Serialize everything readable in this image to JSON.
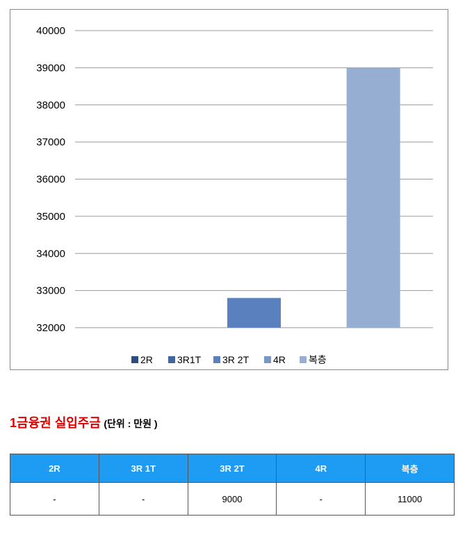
{
  "chart_data": {
    "type": "bar",
    "categories": [
      "",
      "",
      ""
    ],
    "series": [
      {
        "name": "2R",
        "color": "#2e4c7e",
        "values": [
          null,
          null,
          null
        ]
      },
      {
        "name": "3R1T",
        "color": "#3f66a0",
        "values": [
          null,
          null,
          null
        ]
      },
      {
        "name": "3R 2T",
        "color": "#5a80bd",
        "values": [
          null,
          32800,
          null
        ]
      },
      {
        "name": "4R",
        "color": "#7996c8",
        "values": [
          null,
          null,
          null
        ]
      },
      {
        "name": "복층",
        "color": "#97aed3",
        "values": [
          null,
          null,
          39000
        ]
      }
    ],
    "bars": [
      {
        "category_index": 1,
        "series": "3R 2T",
        "value": 32800,
        "color": "#5a80bd"
      },
      {
        "category_index": 2,
        "series": "복층",
        "value": 39000,
        "color": "#97aed3"
      }
    ],
    "yticks": [
      "32000",
      "33000",
      "34000",
      "35000",
      "36000",
      "37000",
      "38000",
      "39000",
      "40000"
    ],
    "ylim": [
      32000,
      40000
    ],
    "grid": true,
    "legend_position": "bottom",
    "title": "",
    "xlabel": "",
    "ylabel": ""
  },
  "section": {
    "title": "1금융권 실입주금",
    "unit_note": "(단위 : 만원 )"
  },
  "table": {
    "headers": [
      "2R",
      "3R 1T",
      "3R 2T",
      "4R",
      "복층"
    ],
    "rows": [
      [
        "-",
        "-",
        "9000",
        "-",
        "11000"
      ]
    ]
  },
  "colors": {
    "header_bg": "#1e9bf3",
    "title_red": "#e00000"
  }
}
